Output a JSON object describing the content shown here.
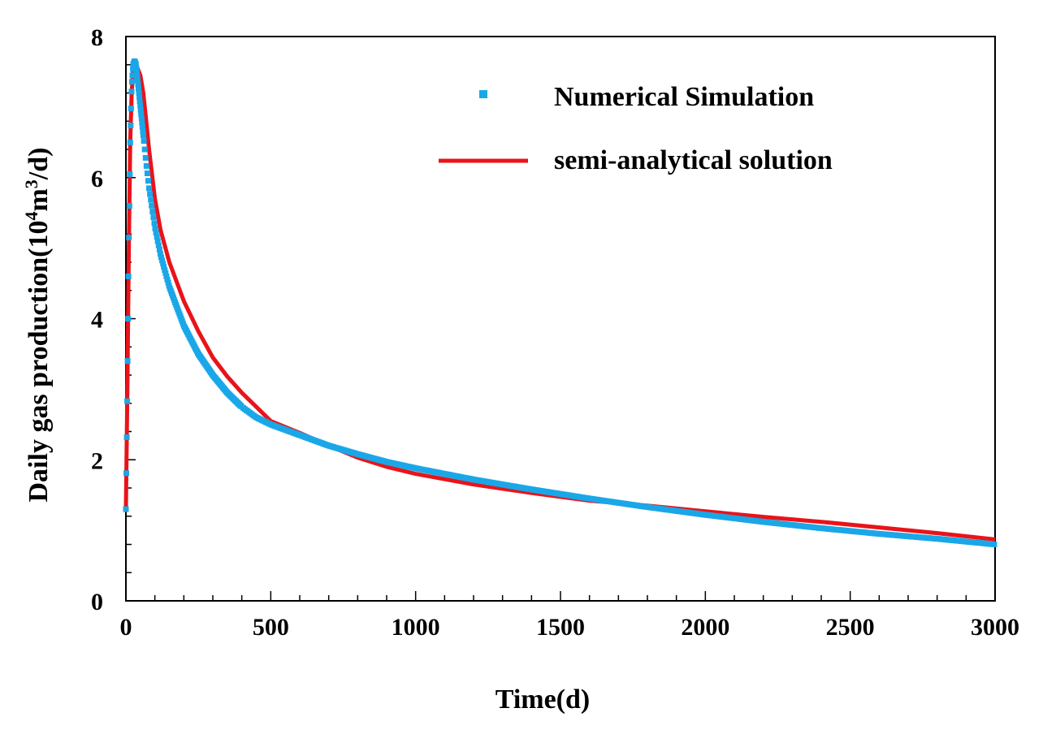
{
  "chart_data": {
    "type": "line",
    "xlabel": "Time(d)",
    "ylabel_main": "Daily gas production(10",
    "ylabel_sup1": "4",
    "ylabel_mid": "m",
    "ylabel_sup2": "3",
    "ylabel_end": "/d)",
    "xlim": [
      0,
      3000
    ],
    "ylim": [
      0,
      8
    ],
    "xticks": [
      0,
      500,
      1000,
      1500,
      2000,
      2500,
      3000
    ],
    "yticks": [
      0,
      2,
      4,
      6,
      8
    ],
    "grid": false,
    "legend_position": "top-right",
    "series": [
      {
        "name": "Numerical Simulation",
        "style": "markers",
        "color": "#1aa7e8",
        "x": [
          0,
          5,
          10,
          15,
          20,
          25,
          30,
          35,
          40,
          50,
          60,
          70,
          80,
          100,
          120,
          150,
          200,
          250,
          300,
          350,
          400,
          450,
          500,
          600,
          700,
          800,
          900,
          1000,
          1200,
          1400,
          1600,
          1800,
          2000,
          2200,
          2400,
          2600,
          2800,
          3000
        ],
        "y": [
          1.3,
          3.0,
          5.0,
          6.5,
          7.3,
          7.6,
          7.65,
          7.6,
          7.4,
          7.0,
          6.6,
          6.2,
          5.85,
          5.3,
          4.9,
          4.45,
          3.9,
          3.5,
          3.2,
          2.95,
          2.75,
          2.6,
          2.5,
          2.35,
          2.2,
          2.08,
          1.97,
          1.88,
          1.72,
          1.58,
          1.45,
          1.33,
          1.22,
          1.12,
          1.03,
          0.95,
          0.88,
          0.8
        ]
      },
      {
        "name": "semi-analytical solution",
        "style": "line",
        "color": "#e8141a",
        "x": [
          0,
          5,
          10,
          15,
          20,
          25,
          30,
          35,
          40,
          50,
          60,
          70,
          80,
          100,
          120,
          150,
          200,
          250,
          300,
          350,
          400,
          450,
          500,
          600,
          700,
          800,
          900,
          1000,
          1200,
          1400,
          1600,
          1800,
          2000,
          2200,
          2400,
          2600,
          2800,
          3000
        ],
        "y": [
          1.3,
          3.0,
          5.0,
          6.5,
          7.2,
          7.5,
          7.55,
          7.55,
          7.55,
          7.45,
          7.2,
          6.8,
          6.4,
          5.7,
          5.25,
          4.8,
          4.25,
          3.82,
          3.45,
          3.18,
          2.95,
          2.75,
          2.55,
          2.38,
          2.2,
          2.03,
          1.9,
          1.8,
          1.65,
          1.53,
          1.42,
          1.35,
          1.27,
          1.19,
          1.12,
          1.04,
          0.96,
          0.87
        ]
      }
    ]
  }
}
